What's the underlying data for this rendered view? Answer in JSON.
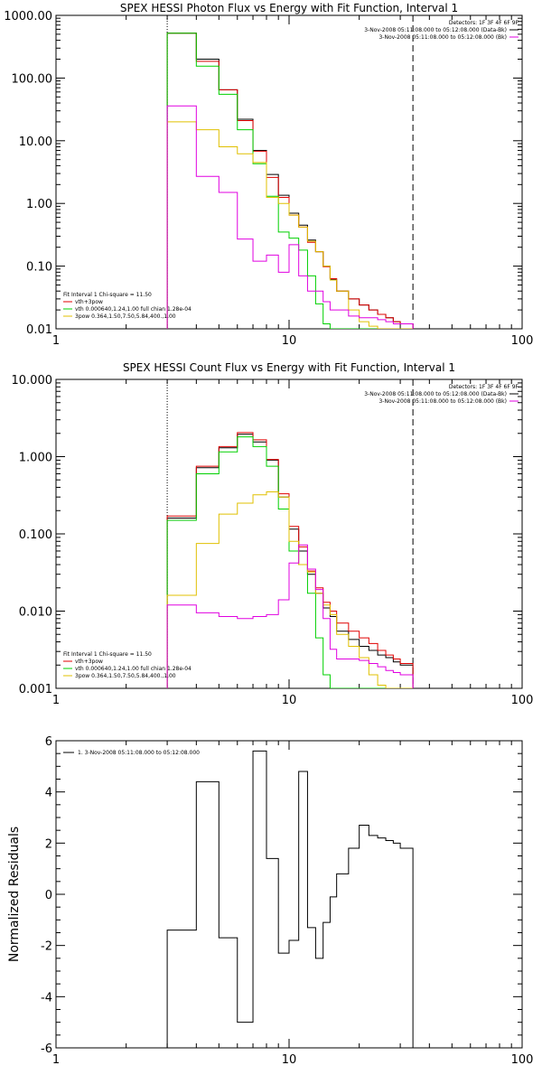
{
  "chart_data": [
    {
      "type": "line",
      "title": "SPEX HESSI Photon Flux vs Energy with Fit Function, Interval 1",
      "x_log": true,
      "y_log": true,
      "xlim": [
        1,
        100
      ],
      "ylim": [
        0.01,
        1000
      ],
      "xticks": [
        1,
        10,
        100
      ],
      "xtick_labels": [
        "1",
        "10",
        "100"
      ],
      "yticks": [
        0.01,
        0.1,
        1,
        10,
        100,
        1000
      ],
      "ytick_labels": [
        "0.01",
        "0.10",
        "1.00",
        "10.00",
        "100.00",
        "1000.00"
      ],
      "edges": [
        3.0,
        4.0,
        5.0,
        6.0,
        7.0,
        8.0,
        9.0,
        10.0,
        11.0,
        12.0,
        13.0,
        14.0,
        15.0,
        16.0,
        18.0,
        20.0,
        22.0,
        24.0,
        26.0,
        28.0,
        30.0,
        34.0
      ],
      "vlines": [
        {
          "x": 3.0,
          "style": "dotted"
        },
        {
          "x": 34.0,
          "style": "dashed"
        }
      ],
      "legend_header": "Detectors: 1F 3F 4F 6F 9F",
      "legend_top": [
        {
          "label": "3-Nov-2008 05:11:08.000 to 05:12:08.000 (Data-Bk)",
          "color": "#000000"
        },
        {
          "label": "3-Nov-2008 05:11:08.000 to 05:12:08.000 (Bk)",
          "color": "#e000e0"
        }
      ],
      "fit_header": "Fit Interval 1   Chi-square = 11.50",
      "legend_bottom": [
        {
          "label": "vth+3pow",
          "color": "#e00000"
        },
        {
          "label": "vth 0.000640,1.24,1.00   full chian 1.28e-04",
          "color": "#00d000"
        },
        {
          "label": "3pow 0.364,1.50,7.50,5.84,400.,1.00",
          "color": "#e0c000"
        }
      ],
      "series": [
        {
          "color": "#000000",
          "values": [
            520,
            200,
            65,
            22,
            7,
            2.9,
            1.35,
            0.7,
            0.45,
            0.26,
            0.17,
            0.1,
            0.062,
            0.04,
            0.03,
            0.024,
            0.02,
            0.017,
            0.015,
            0.013,
            0.012
          ]
        },
        {
          "color": "#e00000",
          "values": [
            520,
            185,
            65,
            21,
            6.8,
            2.6,
            1.25,
            0.65,
            0.42,
            0.24,
            0.17,
            0.098,
            0.063,
            0.04,
            0.03,
            0.024,
            0.02,
            0.017,
            0.015,
            0.013,
            0.012
          ]
        },
        {
          "color": "#00d000",
          "values": [
            520,
            155,
            55,
            15,
            4.3,
            1.3,
            0.35,
            0.28,
            0.18,
            0.07,
            0.025,
            0.012,
            0.01,
            0.01,
            0.01,
            0.01,
            0.01,
            0.01,
            0.01,
            0.01,
            0.01
          ]
        },
        {
          "color": "#e0c000",
          "values": [
            20,
            15,
            8,
            6.2,
            4.5,
            1.25,
            1.0,
            0.65,
            0.42,
            0.25,
            0.17,
            0.1,
            0.06,
            0.04,
            0.02,
            0.013,
            0.011,
            0.01,
            0.01,
            0.01,
            0.01
          ]
        },
        {
          "color": "#e000e0",
          "values": [
            36,
            2.7,
            1.5,
            0.27,
            0.12,
            0.15,
            0.08,
            0.22,
            0.07,
            0.04,
            0.04,
            0.027,
            0.02,
            0.02,
            0.016,
            0.015,
            0.015,
            0.014,
            0.013,
            0.012,
            0.012
          ]
        }
      ]
    },
    {
      "type": "line",
      "title": "SPEX HESSI Count Flux vs Energy with Fit Function, Interval 1",
      "x_log": true,
      "y_log": true,
      "xlim": [
        1,
        100
      ],
      "ylim": [
        0.001,
        10
      ],
      "xticks": [
        1,
        10,
        100
      ],
      "xtick_labels": [
        "1",
        "10",
        "100"
      ],
      "yticks": [
        0.001,
        0.01,
        0.1,
        1,
        10
      ],
      "ytick_labels": [
        "0.001",
        "0.010",
        "0.100",
        "1.000",
        "10.000"
      ],
      "edges": [
        3.0,
        4.0,
        5.0,
        6.0,
        7.0,
        8.0,
        9.0,
        10.0,
        11.0,
        12.0,
        13.0,
        14.0,
        15.0,
        16.0,
        18.0,
        20.0,
        22.0,
        24.0,
        26.0,
        28.0,
        30.0,
        34.0
      ],
      "vlines": [
        {
          "x": 3.0,
          "style": "dotted"
        },
        {
          "x": 34.0,
          "style": "dashed"
        }
      ],
      "legend_header": "Detectors: 1F 3F 4F 6F 9F",
      "legend_top": [
        {
          "label": "3-Nov-2008 05:11:08.000 to 05:12:08.000 (Data-Bk)",
          "color": "#000000"
        },
        {
          "label": "3-Nov-2008 05:11:08.000 to 05:12:08.000 (Bk)",
          "color": "#e000e0"
        }
      ],
      "fit_header": "Fit Interval 1   Chi-square = 11.50",
      "legend_bottom": [
        {
          "label": "vth+3pow",
          "color": "#e00000"
        },
        {
          "label": "vth 0.000640,1.24,1.00   full chian 1.28e-04",
          "color": "#00d000"
        },
        {
          "label": "3pow 0.364,1.50,7.50,5.84,400.,1.00",
          "color": "#e0c000"
        }
      ],
      "series": [
        {
          "color": "#000000",
          "values": [
            0.16,
            0.72,
            1.3,
            1.95,
            1.55,
            0.9,
            0.3,
            0.115,
            0.06,
            0.03,
            0.017,
            0.011,
            0.0085,
            0.0055,
            0.0043,
            0.0035,
            0.0031,
            0.0027,
            0.0025,
            0.0022,
            0.002
          ]
        },
        {
          "color": "#e00000",
          "values": [
            0.17,
            0.75,
            1.35,
            2.05,
            1.65,
            0.92,
            0.33,
            0.125,
            0.068,
            0.033,
            0.02,
            0.013,
            0.01,
            0.007,
            0.0055,
            0.0045,
            0.0038,
            0.0031,
            0.0027,
            0.0024,
            0.0021
          ]
        },
        {
          "color": "#00d000",
          "values": [
            0.15,
            0.6,
            1.15,
            1.8,
            1.35,
            0.75,
            0.21,
            0.06,
            0.04,
            0.017,
            0.0045,
            0.0015,
            0.001,
            0.001,
            0.001,
            0.001,
            0.001,
            0.001,
            0.001,
            0.001,
            0.001
          ]
        },
        {
          "color": "#e0c000",
          "values": [
            0.016,
            0.075,
            0.18,
            0.25,
            0.32,
            0.35,
            0.3,
            0.08,
            0.04,
            0.032,
            0.017,
            0.012,
            0.009,
            0.005,
            0.0035,
            0.0025,
            0.0015,
            0.0011,
            0.001,
            0.001,
            0.001
          ]
        },
        {
          "color": "#e000e0",
          "values": [
            0.012,
            0.0095,
            0.0085,
            0.008,
            0.0085,
            0.009,
            0.014,
            0.042,
            0.072,
            0.035,
            0.019,
            0.008,
            0.0032,
            0.0024,
            0.0024,
            0.0023,
            0.0021,
            0.0019,
            0.0017,
            0.0016,
            0.0015
          ]
        }
      ]
    },
    {
      "type": "line",
      "title": "",
      "ylabel": "Normalized Residuals",
      "x_log": true,
      "y_log": false,
      "xlim": [
        1,
        100
      ],
      "ylim": [
        -6,
        6
      ],
      "xticks": [
        1,
        10,
        100
      ],
      "xtick_labels": [
        "1",
        "10",
        "100"
      ],
      "yticks": [
        -6,
        -4,
        -2,
        0,
        2,
        4,
        6
      ],
      "ytick_labels": [
        "-6",
        "-4",
        "-2",
        "0",
        "2",
        "4",
        "6"
      ],
      "edges": [
        3.0,
        4.0,
        5.0,
        6.0,
        7.0,
        8.0,
        9.0,
        10.0,
        11.0,
        12.0,
        13.0,
        14.0,
        15.0,
        16.0,
        18.0,
        20.0,
        22.0,
        24.0,
        26.0,
        28.0,
        30.0,
        34.0
      ],
      "legend_top": [
        {
          "label": "1.  3-Nov-2008 05:11:08.000 to 05:12:08.000",
          "color": "#000000"
        }
      ],
      "series": [
        {
          "color": "#000000",
          "values": [
            -1.4,
            4.4,
            -1.7,
            -5.0,
            5.6,
            1.4,
            -2.3,
            -1.8,
            4.8,
            -1.3,
            -2.5,
            -1.1,
            -0.1,
            0.8,
            1.8,
            2.7,
            2.3,
            2.2,
            2.1,
            2.0,
            1.8
          ]
        }
      ]
    }
  ]
}
